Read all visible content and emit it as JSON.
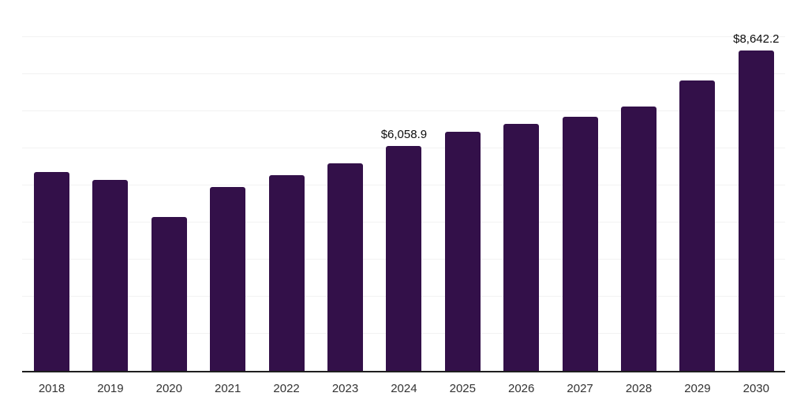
{
  "chart_data": {
    "type": "bar",
    "title": "",
    "xlabel": "",
    "ylabel": "",
    "categories": [
      "2018",
      "2019",
      "2020",
      "2021",
      "2022",
      "2023",
      "2024",
      "2025",
      "2026",
      "2027",
      "2028",
      "2029",
      "2030"
    ],
    "values": [
      5360,
      5150,
      4150,
      4960,
      5280,
      5600,
      6058.9,
      6440,
      6650,
      6860,
      7130,
      7820,
      8642.2
    ],
    "data_labels": [
      {
        "category": "2024",
        "text": "$6,058.9"
      },
      {
        "category": "2030",
        "text": "$8,642.2"
      }
    ],
    "ylim": [
      0,
      10000
    ],
    "gridline_interval": 1000,
    "grid": "horizontal",
    "y_tick_labels_visible": false,
    "legend": "none",
    "colors": {
      "bar": "#331049",
      "gridline": "#f2f2f2",
      "axis_line": "#1f1f1f",
      "value_label_text": "#0d0d0d",
      "tick_label_text": "#333333",
      "background": "#ffffff"
    }
  }
}
